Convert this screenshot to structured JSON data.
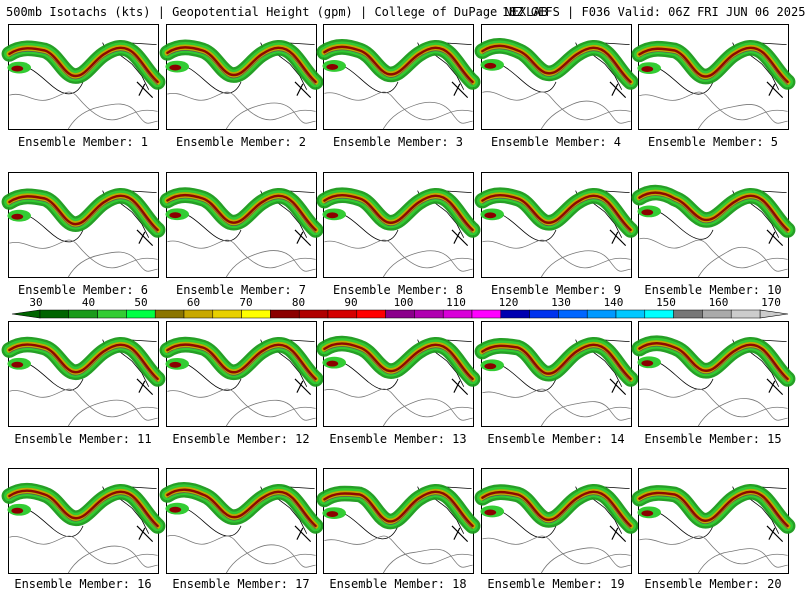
{
  "header": {
    "left": "500mb Isotachs (kts) | Geopotential Height (gpm) | College of DuPage NEXLAB",
    "right": "18Z GEFS | F036 Valid: 06Z FRI JUN 06 2025"
  },
  "members": [
    "Ensemble Member: 1",
    "Ensemble Member: 2",
    "Ensemble Member: 3",
    "Ensemble Member: 4",
    "Ensemble Member: 5",
    "Ensemble Member: 6",
    "Ensemble Member: 7",
    "Ensemble Member: 8",
    "Ensemble Member: 9",
    "Ensemble Member: 10",
    "Ensemble Member: 11",
    "Ensemble Member: 12",
    "Ensemble Member: 13",
    "Ensemble Member: 14",
    "Ensemble Member: 15",
    "Ensemble Member: 16",
    "Ensemble Member: 17",
    "Ensemble Member: 18",
    "Ensemble Member: 19",
    "Ensemble Member: 20"
  ],
  "colorbar": {
    "labels": [
      "30",
      "40",
      "50",
      "60",
      "70",
      "80",
      "90",
      "100",
      "110",
      "120",
      "130",
      "140",
      "150",
      "160",
      "170"
    ],
    "colors": [
      "#006400",
      "#1a9a1a",
      "#33cc33",
      "#00ff44",
      "#8b7500",
      "#c8a800",
      "#e8d000",
      "#ffff00",
      "#8b0000",
      "#b00000",
      "#d40000",
      "#ff0000",
      "#8b008b",
      "#b000b0",
      "#d800d8",
      "#ff00ff",
      "#0000b0",
      "#0033ee",
      "#0066ff",
      "#0099ff",
      "#00c8ff",
      "#00ffff",
      "#777777",
      "#aaaaaa",
      "#cccccc"
    ]
  }
}
